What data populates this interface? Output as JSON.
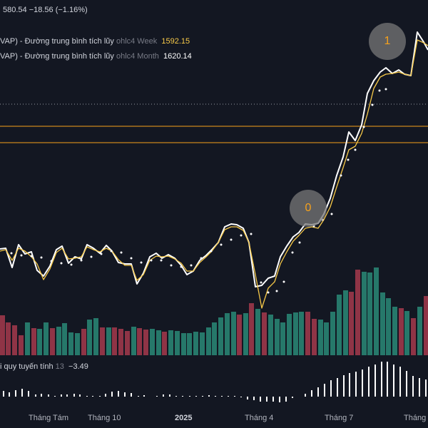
{
  "header": {
    "price_line": "580.54  −18.56 (−1.16%)"
  },
  "legend": [
    {
      "prefix": "VAP) - Đường trung bình tích lũy",
      "source": "ohlc4 Week",
      "value": "1592.15",
      "value_color": "#f7c948"
    },
    {
      "prefix": "VAP) - Đường trung bình tích lũy",
      "source": "ohlc4 Month",
      "value": "1620.14",
      "value_color": "#ffffff"
    }
  ],
  "markers": [
    {
      "label": "0"
    },
    {
      "label": "1"
    }
  ],
  "indicator": {
    "name": "i quy tuyến tính",
    "length": "13",
    "value": "−3.49"
  },
  "time_axis": [
    "Tháng Tám",
    "Tháng 10",
    "2025",
    "Tháng 4",
    "Tháng 7",
    "Tháng"
  ],
  "colors": {
    "background": "#131722",
    "price_line": "#ffffff",
    "weekly_avg": "#f7c948",
    "monthly_avg_dots": "#ffffff",
    "horizontal_levels": "#f7a21b",
    "dotted_level": "#9598a1",
    "volume_up": "#26786a",
    "volume_down": "#8f3446",
    "oscillator": "#ffffff"
  },
  "chart_data": {
    "type": "line",
    "series": [
      {
        "values": [
          400,
          380,
          390,
          370,
          400,
          365,
          340,
          345,
          360,
          385,
          380,
          330,
          335,
          345,
          340,
          385,
          330,
          365,
          335,
          380,
          355,
          365,
          360,
          360,
          395,
          365,
          360,
          370,
          395,
          360,
          360,
          375,
          315,
          315,
          350,
          405,
          420,
          425,
          420,
          440,
          445,
          460,
          510,
          500,
          450,
          520
        ]
      },
      {
        "values": [
          1600,
          1580,
          1590,
          1575,
          1600,
          1570,
          1550,
          1555,
          1570,
          1590,
          1585,
          1545,
          1548,
          1555,
          1552,
          1590,
          1548,
          1575,
          1550,
          1585,
          1565,
          1572,
          1568,
          1570,
          1595,
          1572,
          1568,
          1575,
          1595,
          1572,
          1570,
          1580,
          1540,
          1540,
          1560,
          1592,
          1600,
          1605,
          1600,
          1612,
          1615,
          1625,
          1655,
          1650,
          1620,
          1660
        ]
      }
    ]
  }
}
